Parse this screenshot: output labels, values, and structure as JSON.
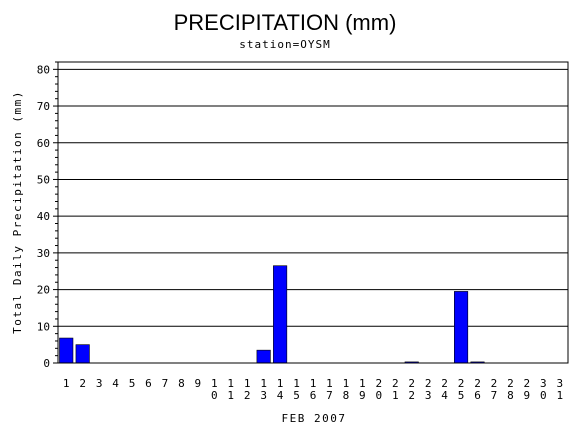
{
  "chart_data": {
    "type": "bar",
    "title": "PRECIPITATION (mm)",
    "subtitle": "station=OYSM",
    "xlabel": "FEB 2007",
    "ylabel": "Total Daily Precipitation (mm)",
    "ylim": [
      0,
      82
    ],
    "yticks": [
      0,
      10,
      20,
      30,
      40,
      50,
      60,
      70,
      80
    ],
    "grid": true,
    "categories": [
      "1",
      "2",
      "3",
      "4",
      "5",
      "6",
      "7",
      "8",
      "9",
      "10",
      "11",
      "12",
      "13",
      "14",
      "15",
      "16",
      "17",
      "18",
      "19",
      "20",
      "21",
      "22",
      "23",
      "24",
      "25",
      "26",
      "27",
      "28",
      "29",
      "30",
      "31"
    ],
    "values": [
      6.8,
      5.0,
      0,
      0,
      0,
      0,
      0,
      0,
      0,
      0,
      0,
      0,
      3.5,
      26.5,
      0,
      0,
      0,
      0,
      0,
      0,
      0,
      0.3,
      0,
      0,
      19.5,
      0.3,
      0,
      0,
      0,
      0,
      0
    ],
    "bar_color": "#0000ff"
  }
}
